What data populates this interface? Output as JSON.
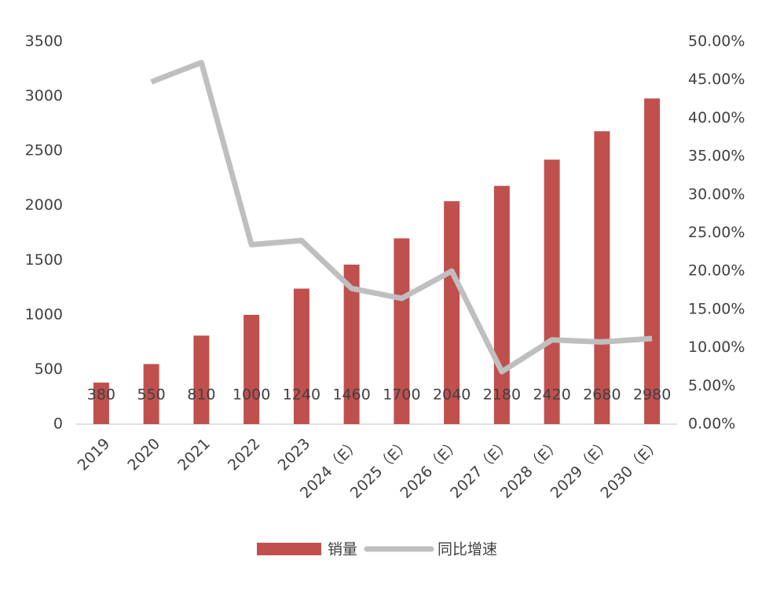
{
  "chart_data": {
    "type": "bar",
    "categories": [
      "2019",
      "2020",
      "2021",
      "2022",
      "2023",
      "2024（E）",
      "2025（E）",
      "2026（E）",
      "2027（E）",
      "2028（E）",
      "2029（E）",
      "2030（E）"
    ],
    "series": [
      {
        "name": "销量",
        "type": "bar",
        "color": "#c0504d",
        "values": [
          380,
          550,
          810,
          1000,
          1240,
          1460,
          1700,
          2040,
          2180,
          2420,
          2680,
          2980
        ]
      },
      {
        "name": "同比增速",
        "type": "line",
        "axis": "y2",
        "color": "#bfbfbf",
        "values": [
          null,
          44.74,
          47.27,
          23.46,
          24.0,
          17.74,
          16.44,
          20.0,
          6.86,
          11.01,
          10.74,
          11.19
        ]
      }
    ],
    "ylim": [
      0,
      3500
    ],
    "yticks": [
      0,
      500,
      1000,
      1500,
      2000,
      2500,
      3000,
      3500
    ],
    "y2lim": [
      0,
      50
    ],
    "y2ticks": [
      {
        "value": 0,
        "label": "0.00%"
      },
      {
        "value": 5,
        "label": "5.00%"
      },
      {
        "value": 10,
        "label": "10.00%"
      },
      {
        "value": 15,
        "label": "15.00%"
      },
      {
        "value": 20,
        "label": "20.00%"
      },
      {
        "value": 25,
        "label": "25.00%"
      },
      {
        "value": 30,
        "label": "30.00%"
      },
      {
        "value": 35,
        "label": "35.00%"
      },
      {
        "value": 40,
        "label": "40.00%"
      },
      {
        "value": 45,
        "label": "45.00%"
      },
      {
        "value": 50,
        "label": "50.00%"
      }
    ],
    "legend": "bottom",
    "grid": false
  }
}
